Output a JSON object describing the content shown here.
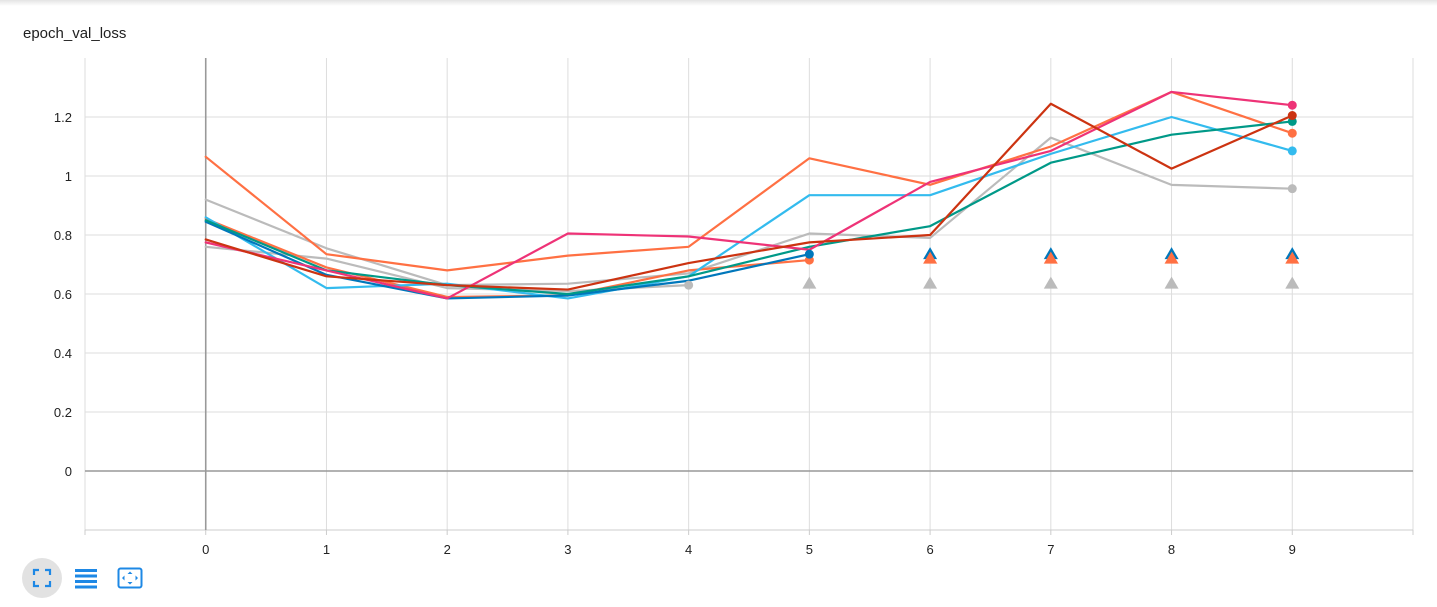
{
  "card": {
    "title": "epoch_val_loss"
  },
  "toolbar": [
    {
      "name": "fit-domain-button",
      "icon": "expand-corners-icon"
    },
    {
      "name": "toggle-log-scale-button",
      "icon": "list-lines-icon"
    },
    {
      "name": "fit-to-data-button",
      "icon": "fit-screen-icon"
    }
  ],
  "chart_data": {
    "type": "line",
    "title": "epoch_val_loss",
    "xlabel": "",
    "ylabel": "",
    "xlim": [
      -1,
      10
    ],
    "ylim": [
      -0.2,
      1.4
    ],
    "x_ticks": [
      "0",
      "1",
      "2",
      "3",
      "4",
      "5",
      "6",
      "7",
      "8",
      "9"
    ],
    "y_ticks": [
      "0",
      "0.2",
      "0.4",
      "0.6",
      "0.8",
      "1",
      "1.2"
    ],
    "grid": true,
    "series": [
      {
        "color": "#bbbbbb",
        "x": [
          0,
          1,
          2,
          3,
          4,
          5,
          6,
          7,
          8,
          9
        ],
        "y": [
          0.92,
          0.755,
          0.63,
          0.635,
          0.67,
          0.805,
          0.79,
          1.13,
          0.97,
          0.957
        ]
      },
      {
        "color": "#bbbbbb",
        "x": [
          0,
          1,
          2,
          3,
          4
        ],
        "y": [
          0.76,
          0.72,
          0.62,
          0.61,
          0.63
        ]
      },
      {
        "color": "#ff7043",
        "x": [
          0,
          1,
          2,
          3,
          4,
          5,
          6,
          7,
          8,
          9
        ],
        "y": [
          1.065,
          0.735,
          0.68,
          0.73,
          0.76,
          1.06,
          0.97,
          1.1,
          1.285,
          1.145
        ]
      },
      {
        "color": "#ff7043",
        "x": [
          0,
          1,
          2,
          3,
          4,
          5
        ],
        "y": [
          0.855,
          0.69,
          0.59,
          0.595,
          0.68,
          0.715
        ]
      },
      {
        "color": "#33bbee",
        "x": [
          0,
          1,
          2,
          3,
          4,
          5,
          6,
          7,
          8,
          9
        ],
        "y": [
          0.86,
          0.62,
          0.635,
          0.585,
          0.66,
          0.935,
          0.935,
          1.075,
          1.2,
          1.085
        ]
      },
      {
        "color": "#0077bb",
        "x": [
          0,
          1,
          2,
          3,
          4,
          5
        ],
        "y": [
          0.845,
          0.665,
          0.585,
          0.595,
          0.645,
          0.735
        ]
      },
      {
        "color": "#009988",
        "x": [
          0,
          1,
          2,
          3,
          4,
          5,
          6,
          7,
          8,
          9
        ],
        "y": [
          0.85,
          0.68,
          0.63,
          0.6,
          0.66,
          0.76,
          0.83,
          1.045,
          1.14,
          1.185
        ]
      },
      {
        "color": "#ee3377",
        "x": [
          0,
          1,
          2,
          3,
          4,
          5,
          6,
          7,
          8,
          9
        ],
        "y": [
          0.775,
          0.68,
          0.585,
          0.805,
          0.795,
          0.75,
          0.98,
          1.085,
          1.285,
          1.24
        ]
      },
      {
        "color": "#cc3311",
        "x": [
          0,
          1,
          2,
          3,
          4,
          5,
          6,
          7,
          8,
          9
        ],
        "y": [
          0.785,
          0.66,
          0.63,
          0.615,
          0.705,
          0.775,
          0.8,
          1.245,
          1.025,
          1.205
        ]
      }
    ],
    "triangle_markers": [
      {
        "color": "#0077bb",
        "x": [
          6,
          7,
          8,
          9
        ],
        "y": 0.735
      },
      {
        "color": "#ff7043",
        "x": [
          6,
          7,
          8,
          9
        ],
        "y": 0.72
      },
      {
        "color": "#bbbbbb",
        "x": [
          5,
          6,
          7,
          8,
          9
        ],
        "y": 0.635
      }
    ]
  }
}
